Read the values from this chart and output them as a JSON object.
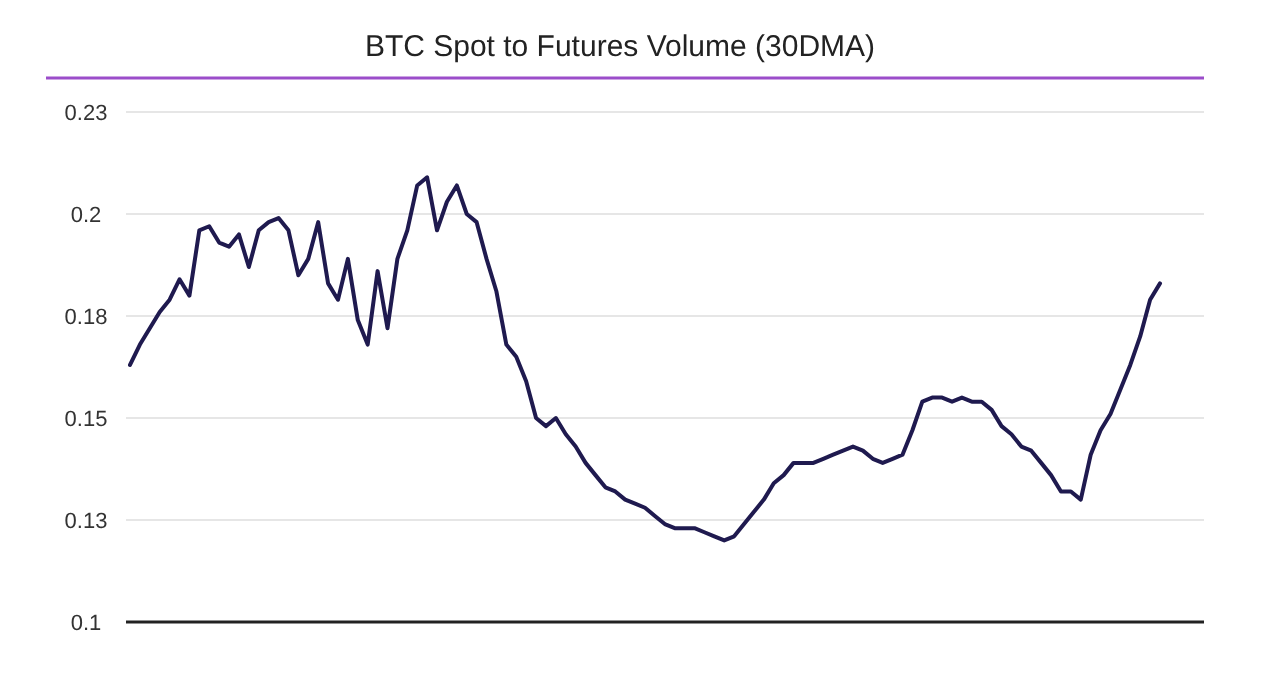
{
  "chart_data": {
    "type": "line",
    "title": "BTC Spot to Futures Volume (30DMA)",
    "categories": [
      null,
      null,
      null,
      null,
      null,
      null,
      null,
      null,
      null,
      null,
      null,
      null,
      null,
      null,
      null,
      null,
      null,
      null,
      null,
      null,
      null,
      null,
      null,
      null,
      null,
      null,
      null,
      null,
      null,
      null,
      null,
      null,
      null,
      null,
      null,
      null,
      null,
      null,
      null,
      null,
      null,
      null,
      null,
      null,
      null,
      null,
      null,
      null,
      null,
      null,
      null,
      null,
      null,
      null,
      null,
      null,
      null,
      null,
      null,
      null,
      null,
      null,
      null,
      null,
      null,
      null,
      null,
      null,
      null,
      null,
      null,
      null,
      null,
      null,
      null,
      null,
      null,
      null,
      null,
      null,
      null,
      null,
      null,
      null,
      null,
      null,
      null,
      null,
      null,
      null,
      null,
      null,
      null,
      null,
      null,
      null,
      null,
      null,
      null,
      null,
      null,
      null,
      null,
      null,
      null
    ],
    "series": [
      {
        "color": "#1f1a4f",
        "values": [
          0.163,
          0.168,
          0.172,
          0.176,
          0.179,
          0.184,
          0.18,
          0.196,
          0.197,
          0.193,
          0.192,
          0.195,
          0.187,
          0.196,
          0.198,
          0.199,
          0.196,
          0.185,
          0.189,
          0.198,
          0.183,
          0.179,
          0.189,
          0.174,
          0.168,
          0.186,
          0.172,
          0.189,
          0.196,
          0.207,
          0.209,
          0.196,
          0.203,
          0.207,
          0.2,
          0.198,
          0.189,
          0.181,
          0.168,
          0.165,
          0.159,
          0.15,
          0.148,
          0.15,
          0.146,
          0.143,
          0.139,
          0.136,
          0.133,
          0.132,
          0.13,
          0.129,
          0.128,
          0.126,
          0.124,
          0.123,
          0.123,
          0.123,
          0.122,
          0.121,
          0.12,
          0.121,
          0.124,
          0.127,
          0.13,
          0.134,
          0.136,
          0.139,
          0.139,
          0.139,
          0.14,
          0.141,
          0.142,
          0.143,
          0.142,
          0.14,
          0.139,
          0.14,
          0.141,
          0.147,
          0.154,
          0.155,
          0.155,
          0.154,
          0.155,
          0.154,
          0.154,
          0.152,
          0.148,
          0.146,
          0.143,
          0.142,
          0.139,
          0.136,
          0.132,
          0.132,
          0.13,
          0.141,
          0.147,
          0.151,
          0.157,
          0.163,
          0.17,
          0.179,
          0.183
        ]
      }
    ],
    "ylim": [
      0.1,
      0.225
    ],
    "yticks": [
      {
        "value": 0.1,
        "label": "0.1"
      },
      {
        "value": 0.125,
        "label": "0.13"
      },
      {
        "value": 0.15,
        "label": "0.15"
      },
      {
        "value": 0.175,
        "label": "0.18"
      },
      {
        "value": 0.2,
        "label": "0.2"
      },
      {
        "value": 0.225,
        "label": "0.23"
      }
    ],
    "grid": "y",
    "line_style": "solid",
    "tick_labels": "y"
  }
}
